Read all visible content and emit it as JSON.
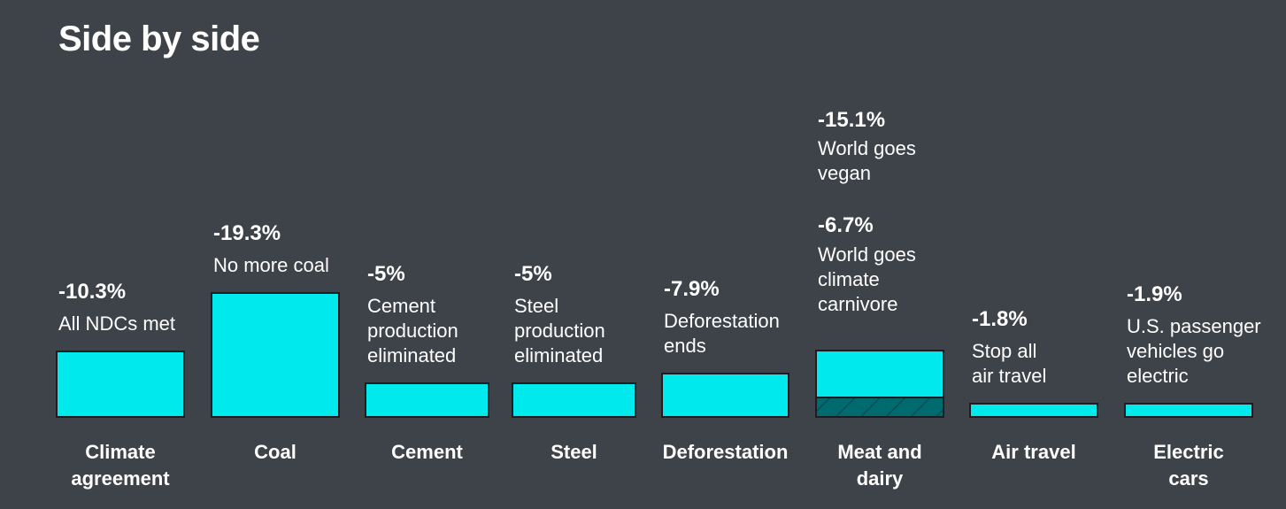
{
  "title": "Side by side",
  "chart_data": {
    "type": "bar",
    "categories": [
      {
        "label": "Climate\nagreement",
        "value": -10.3,
        "value_label": "-10.3%",
        "description": "All NDCs met"
      },
      {
        "label": "Coal",
        "value": -19.3,
        "value_label": "-19.3%",
        "description": "No more coal"
      },
      {
        "label": "Cement",
        "value": -5,
        "value_label": "-5%",
        "description": "Cement\nproduction\neliminated"
      },
      {
        "label": "Steel",
        "value": -5,
        "value_label": "-5%",
        "description": "Steel\nproduction\neliminated"
      },
      {
        "label": "Deforestation",
        "value": -7.9,
        "value_label": "-7.9%",
        "description": "Deforestation\nends"
      },
      {
        "label": "Meat and\ndairy",
        "stacked": true,
        "segments": [
          {
            "value": -6.7,
            "value_label": "-6.7%",
            "description": "World goes\nclimate\ncarnivore",
            "color": "#00eaee"
          },
          {
            "value": -15.1,
            "value_label": "-15.1%",
            "description": "World goes\nvegan",
            "color": "#006b6f",
            "pattern": "hatch"
          }
        ]
      },
      {
        "label": "Air travel",
        "value": -1.8,
        "value_label": "-1.8%",
        "description": "Stop all\nair travel"
      },
      {
        "label": "Electric\ncars",
        "value": -1.9,
        "value_label": "-1.9%",
        "description": "U.S. passenger\nvehicles go\nelectric"
      }
    ],
    "colors": {
      "bar": "#00eaee",
      "bar_dark": "#006b6f",
      "background": "#3e4249"
    }
  }
}
